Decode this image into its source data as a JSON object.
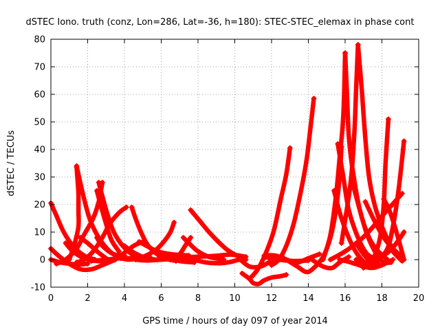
{
  "chart_data": {
    "type": "scatter",
    "title": "dSTEC Iono. truth (conz, Lon=286, Lat=-36, h=180): STEC-STEC_elemax in phase cont",
    "xlabel": "GPS time / hours of day 097 of year 2014",
    "ylabel": "dSTEC  / TECUs",
    "xlim": [
      0,
      20
    ],
    "ylim": [
      -10,
      80
    ],
    "xticks": [
      "0",
      "2",
      "4",
      "6",
      "8",
      "10",
      "12",
      "14",
      "16",
      "18",
      "20"
    ],
    "yticks": [
      "-10",
      "0",
      "10",
      "20",
      "30",
      "40",
      "50",
      "60",
      "70",
      "80"
    ],
    "grid": true,
    "marker": "+",
    "color": "#ff0000",
    "series": [
      {
        "points": [
          [
            0.0,
            20.5
          ],
          [
            0.3,
            16
          ],
          [
            0.7,
            10
          ],
          [
            1.2,
            5
          ],
          [
            1.8,
            1.5
          ],
          [
            2.4,
            0
          ]
        ]
      },
      {
        "points": [
          [
            0.0,
            4
          ],
          [
            0.4,
            1.5
          ],
          [
            1.0,
            -1.5
          ],
          [
            1.6,
            -3.5
          ],
          [
            2.2,
            -3.5
          ],
          [
            2.8,
            -2
          ],
          [
            3.5,
            0
          ]
        ]
      },
      {
        "points": [
          [
            0.0,
            0
          ],
          [
            0.5,
            -1
          ],
          [
            1.0,
            -1.5
          ],
          [
            1.5,
            -1.8
          ],
          [
            2.0,
            -1.5
          ]
        ]
      },
      {
        "points": [
          [
            0.3,
            -1.5
          ],
          [
            0.8,
            0
          ],
          [
            1.4,
            4
          ],
          [
            1.8,
            9
          ],
          [
            2.3,
            15
          ],
          [
            2.6,
            21
          ],
          [
            2.8,
            28
          ]
        ]
      },
      {
        "points": [
          [
            1.0,
            0
          ],
          [
            1.3,
            6
          ],
          [
            1.5,
            12
          ],
          [
            1.5,
            18
          ],
          [
            1.5,
            24
          ],
          [
            1.45,
            29
          ],
          [
            1.4,
            33.5
          ]
        ]
      },
      {
        "points": [
          [
            0.8,
            6
          ],
          [
            1.2,
            3
          ],
          [
            1.8,
            0.5
          ],
          [
            2.5,
            -0.5
          ],
          [
            3.2,
            -0.5
          ]
        ]
      },
      {
        "points": [
          [
            1.4,
            34
          ],
          [
            1.7,
            25
          ],
          [
            2.1,
            15
          ],
          [
            2.6,
            8
          ],
          [
            3.2,
            3
          ],
          [
            3.8,
            0.5
          ]
        ]
      },
      {
        "points": [
          [
            1.4,
            -1
          ],
          [
            1.8,
            0
          ],
          [
            2.3,
            3
          ],
          [
            2.8,
            8
          ],
          [
            3.2,
            13
          ],
          [
            3.7,
            17
          ],
          [
            4.1,
            19
          ]
        ]
      },
      {
        "points": [
          [
            2.6,
            28
          ],
          [
            2.8,
            23
          ],
          [
            3.1,
            16
          ],
          [
            3.5,
            9
          ],
          [
            4.2,
            3
          ],
          [
            5.0,
            0.5
          ],
          [
            5.8,
            0
          ]
        ]
      },
      {
        "points": [
          [
            2.5,
            25
          ],
          [
            2.7,
            20
          ],
          [
            3.0,
            13
          ],
          [
            3.3,
            7
          ],
          [
            3.7,
            3
          ]
        ]
      },
      {
        "points": [
          [
            1.6,
            8
          ],
          [
            2.0,
            6
          ],
          [
            2.6,
            2.5
          ],
          [
            3.1,
            0
          ]
        ]
      },
      {
        "points": [
          [
            2.5,
            8
          ],
          [
            2.8,
            5
          ],
          [
            3.4,
            2
          ],
          [
            4.0,
            1.5
          ]
        ]
      },
      {
        "points": [
          [
            2.2,
            -0.5
          ],
          [
            3.0,
            0
          ],
          [
            3.8,
            0.5
          ],
          [
            4.6,
            0.5
          ],
          [
            5.4,
            0.8
          ]
        ]
      },
      {
        "points": [
          [
            3.0,
            -1
          ],
          [
            3.5,
            0
          ],
          [
            4.0,
            2.5
          ],
          [
            4.5,
            5
          ],
          [
            5.0,
            6.5
          ]
        ]
      },
      {
        "points": [
          [
            4.4,
            19
          ],
          [
            4.6,
            15
          ],
          [
            4.9,
            10
          ],
          [
            5.3,
            5
          ],
          [
            6.0,
            1
          ],
          [
            6.8,
            -0.5
          ]
        ]
      },
      {
        "points": [
          [
            4.0,
            5
          ],
          [
            4.4,
            3
          ],
          [
            5.0,
            1
          ],
          [
            5.6,
            0
          ]
        ]
      },
      {
        "points": [
          [
            3.8,
            0.5
          ],
          [
            4.3,
            0
          ],
          [
            5.0,
            1
          ],
          [
            5.7,
            3.5
          ],
          [
            6.2,
            7
          ],
          [
            6.5,
            10
          ],
          [
            6.7,
            13.5
          ]
        ]
      },
      {
        "points": [
          [
            4.6,
            0
          ],
          [
            5.2,
            -0.3
          ],
          [
            6.0,
            0
          ],
          [
            7.0,
            0.3
          ],
          [
            7.8,
            0
          ]
        ]
      },
      {
        "points": [
          [
            4.8,
            6.5
          ],
          [
            5.2,
            5
          ],
          [
            5.8,
            3
          ],
          [
            6.5,
            2
          ],
          [
            7.5,
            1.5
          ]
        ]
      },
      {
        "points": [
          [
            5.8,
            2.5
          ],
          [
            6.3,
            1
          ],
          [
            7.0,
            -0.5
          ],
          [
            7.8,
            -1
          ]
        ]
      },
      {
        "points": [
          [
            6.5,
            0
          ],
          [
            7.0,
            2
          ],
          [
            7.3,
            5
          ],
          [
            7.6,
            8
          ]
        ]
      },
      {
        "points": [
          [
            7.2,
            8
          ],
          [
            7.5,
            6
          ],
          [
            8.0,
            3
          ],
          [
            8.6,
            1
          ],
          [
            9.4,
            0
          ]
        ]
      },
      {
        "points": [
          [
            7.6,
            18
          ],
          [
            8.1,
            14
          ],
          [
            8.6,
            10
          ],
          [
            9.1,
            6.5
          ],
          [
            9.6,
            3.5
          ],
          [
            10.1,
            1.5
          ],
          [
            10.6,
            0
          ]
        ]
      },
      {
        "points": [
          [
            7.8,
            0
          ],
          [
            8.4,
            -1
          ],
          [
            9.2,
            -1.3
          ],
          [
            9.8,
            -0.8
          ],
          [
            10.2,
            0
          ]
        ]
      },
      {
        "points": [
          [
            6.8,
            1
          ],
          [
            7.8,
            1
          ],
          [
            8.8,
            1.3
          ],
          [
            9.8,
            1.8
          ],
          [
            10.6,
            1
          ]
        ]
      },
      {
        "points": [
          [
            10.3,
            0
          ],
          [
            10.8,
            -2.5
          ],
          [
            11.4,
            -2.5
          ],
          [
            12.0,
            -0.5
          ],
          [
            12.6,
            1
          ]
        ]
      },
      {
        "points": [
          [
            10.4,
            -5
          ],
          [
            10.8,
            -7
          ],
          [
            11.0,
            -8.5
          ],
          [
            11.3,
            -8.8
          ],
          [
            11.6,
            -7.5
          ],
          [
            12.0,
            -6.5
          ],
          [
            12.5,
            -6
          ],
          [
            12.8,
            -5.5
          ]
        ]
      },
      {
        "points": [
          [
            10.8,
            -7
          ],
          [
            11.2,
            -4
          ],
          [
            11.6,
            1
          ],
          [
            12.1,
            10
          ],
          [
            12.5,
            22
          ],
          [
            12.8,
            31
          ],
          [
            13.0,
            40.5
          ]
        ]
      },
      {
        "points": [
          [
            12.0,
            -2
          ],
          [
            12.4,
            0
          ],
          [
            12.8,
            5
          ],
          [
            13.2,
            13
          ],
          [
            13.6,
            25
          ],
          [
            13.9,
            36
          ],
          [
            14.1,
            47
          ],
          [
            14.3,
            58.5
          ]
        ]
      },
      {
        "points": [
          [
            11.6,
            1.5
          ],
          [
            12.2,
            1.5
          ],
          [
            12.8,
            0
          ],
          [
            13.4,
            -1
          ],
          [
            14.0,
            0.5
          ],
          [
            14.6,
            2
          ]
        ]
      },
      {
        "points": [
          [
            12.8,
            0
          ],
          [
            13.4,
            -2.5
          ],
          [
            13.9,
            -4.5
          ],
          [
            14.3,
            -3
          ],
          [
            14.8,
            1
          ],
          [
            15.2,
            8
          ],
          [
            15.5,
            18
          ],
          [
            15.7,
            30
          ],
          [
            15.8,
            41
          ]
        ]
      },
      {
        "points": [
          [
            11.6,
            1
          ],
          [
            12.4,
            0
          ],
          [
            13.2,
            -0.5
          ],
          [
            14.0,
            -0.3
          ]
        ]
      },
      {
        "points": [
          [
            14.8,
            0
          ],
          [
            15.2,
            9
          ],
          [
            15.5,
            23
          ],
          [
            15.7,
            37
          ],
          [
            15.9,
            52
          ],
          [
            16.0,
            75
          ]
        ]
      },
      {
        "points": [
          [
            16.0,
            75
          ],
          [
            16.1,
            60
          ],
          [
            16.2,
            45
          ],
          [
            16.4,
            33
          ],
          [
            16.8,
            18
          ],
          [
            17.3,
            8
          ],
          [
            17.8,
            3
          ],
          [
            18.3,
            0
          ]
        ]
      },
      {
        "points": [
          [
            15.6,
            42
          ],
          [
            15.9,
            30
          ],
          [
            16.2,
            18
          ],
          [
            16.7,
            8
          ],
          [
            17.2,
            2
          ],
          [
            17.8,
            0
          ]
        ]
      },
      {
        "points": [
          [
            15.8,
            6
          ],
          [
            16.3,
            28
          ],
          [
            16.5,
            46
          ],
          [
            16.6,
            62
          ],
          [
            16.7,
            78
          ]
        ]
      },
      {
        "points": [
          [
            16.7,
            78
          ],
          [
            16.9,
            62
          ],
          [
            17.1,
            44
          ],
          [
            17.3,
            30
          ],
          [
            17.6,
            20
          ],
          [
            18.0,
            12
          ],
          [
            18.5,
            5
          ],
          [
            19.1,
            0
          ]
        ]
      },
      {
        "points": [
          [
            15.4,
            25
          ],
          [
            15.8,
            15
          ],
          [
            16.4,
            5
          ],
          [
            16.9,
            0
          ],
          [
            17.3,
            -2
          ],
          [
            17.8,
            -1.5
          ]
        ]
      },
      {
        "points": [
          [
            16.4,
            28
          ],
          [
            16.8,
            18
          ],
          [
            17.2,
            9
          ],
          [
            17.7,
            2
          ],
          [
            18.1,
            -1
          ],
          [
            18.5,
            -1
          ]
        ]
      },
      {
        "points": [
          [
            14.2,
            0
          ],
          [
            14.8,
            -2.5
          ],
          [
            15.3,
            -3
          ],
          [
            15.7,
            -1
          ],
          [
            16.2,
            1
          ]
        ]
      },
      {
        "points": [
          [
            15.2,
            0
          ],
          [
            16.0,
            3
          ],
          [
            16.8,
            7
          ],
          [
            17.4,
            11
          ],
          [
            17.9,
            15
          ],
          [
            18.3,
            18
          ],
          [
            18.7,
            21
          ],
          [
            19.1,
            24
          ]
        ]
      },
      {
        "points": [
          [
            16.6,
            6
          ],
          [
            17.0,
            2
          ],
          [
            17.4,
            -0.5
          ],
          [
            17.8,
            0
          ],
          [
            18.3,
            4
          ],
          [
            18.6,
            12
          ],
          [
            18.9,
            25
          ],
          [
            19.2,
            43
          ]
        ]
      },
      {
        "points": [
          [
            17.0,
            -3
          ],
          [
            17.5,
            0
          ],
          [
            17.9,
            8
          ],
          [
            18.1,
            20
          ],
          [
            18.2,
            35
          ],
          [
            18.35,
            51
          ]
        ]
      },
      {
        "points": [
          [
            16.6,
            0
          ],
          [
            17.2,
            -1
          ],
          [
            17.8,
            0.5
          ],
          [
            18.4,
            3
          ],
          [
            18.9,
            7
          ],
          [
            19.2,
            10
          ]
        ]
      },
      {
        "points": [
          [
            17.1,
            21
          ],
          [
            17.6,
            14
          ],
          [
            18.1,
            8
          ],
          [
            18.6,
            4
          ],
          [
            19.1,
            1
          ]
        ]
      },
      {
        "points": [
          [
            18.1,
            22
          ],
          [
            18.4,
            18
          ],
          [
            18.7,
            12
          ],
          [
            19.0,
            5
          ],
          [
            19.2,
            0
          ]
        ]
      },
      {
        "points": [
          [
            17.8,
            14
          ],
          [
            18.2,
            8
          ],
          [
            18.6,
            3
          ],
          [
            19.1,
            -0.5
          ]
        ]
      },
      {
        "points": [
          [
            15.7,
            0
          ],
          [
            16.3,
            -1
          ],
          [
            17.0,
            -2.5
          ],
          [
            17.5,
            -3
          ],
          [
            18.0,
            -2
          ],
          [
            18.6,
            0
          ]
        ]
      }
    ]
  }
}
